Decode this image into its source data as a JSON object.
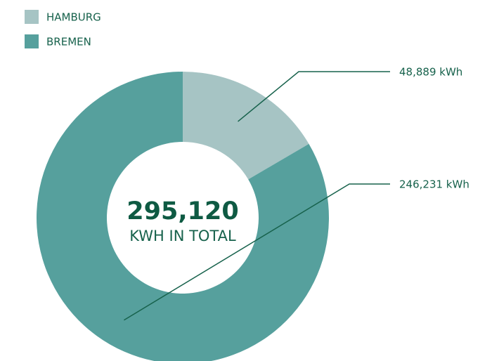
{
  "chart_data": {
    "type": "donut",
    "categories": [
      "HAMBURG",
      "BREMEN"
    ],
    "values": [
      48889,
      246231
    ],
    "value_labels": [
      "48,889 kWh",
      "246,231 kWh"
    ],
    "colors": [
      "#a6c4c4",
      "#56a09d"
    ],
    "center_value": "295,120",
    "center_label": "KWH IN TOTAL"
  }
}
